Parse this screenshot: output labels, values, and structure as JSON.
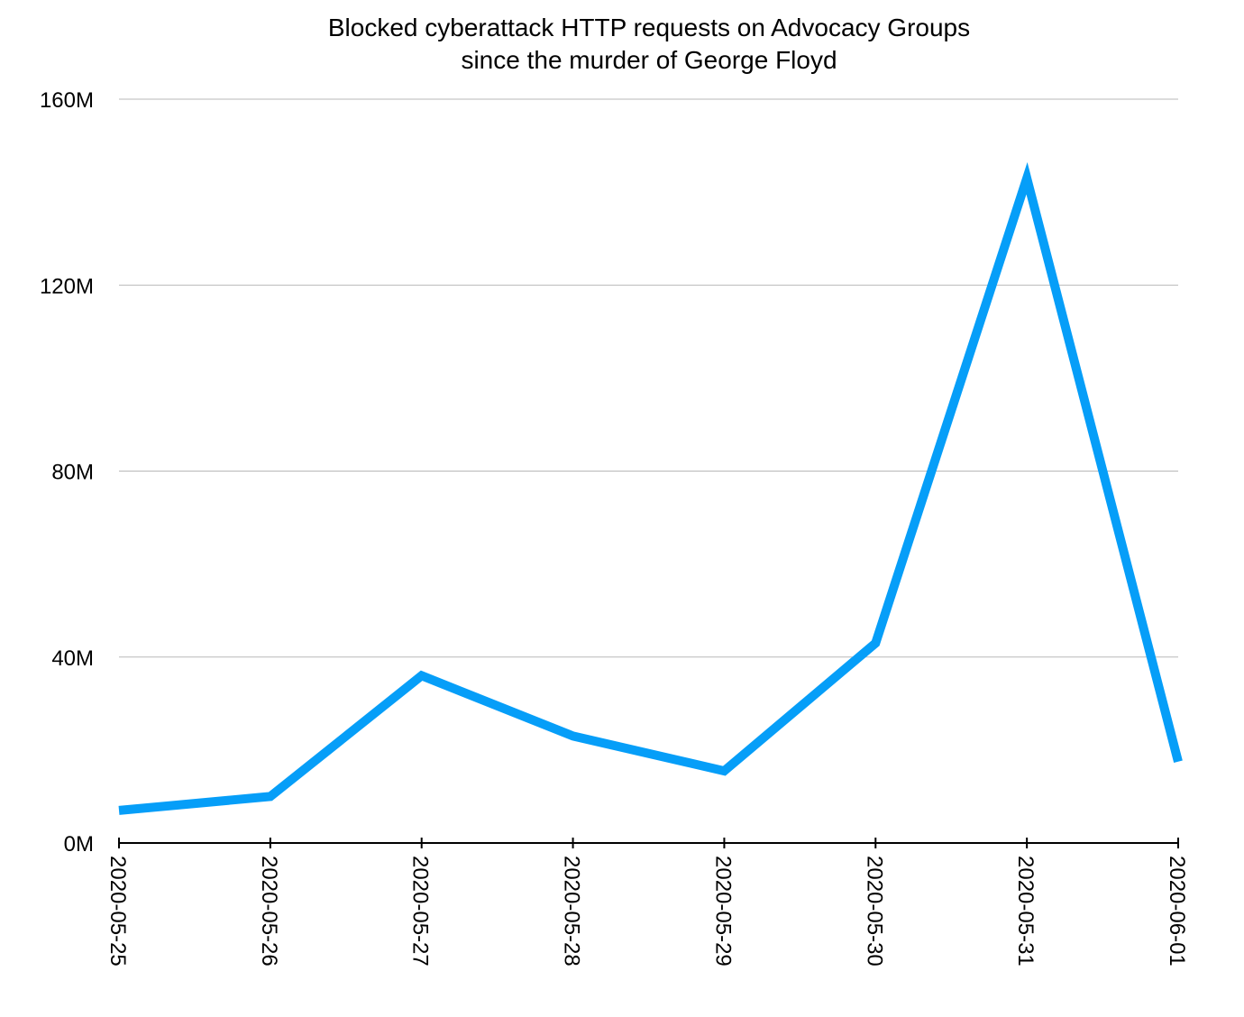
{
  "chart_data": {
    "type": "line",
    "title_lines": [
      "Blocked cyberattack HTTP requests on Advocacy Groups",
      "since the murder of George Floyd"
    ],
    "xlabel": "",
    "ylabel": "",
    "x": [
      "2020-05-25",
      "2020-05-26",
      "2020-05-27",
      "2020-05-28",
      "2020-05-29",
      "2020-05-30",
      "2020-05-31",
      "2020-06-01"
    ],
    "series": [
      {
        "values": [
          7000000,
          10000000,
          36000000,
          23000000,
          15500000,
          43000000,
          143000000,
          17500000
        ],
        "color": "#069ef8"
      }
    ],
    "ylim": [
      0,
      160000000
    ],
    "yticks": [
      0,
      40000000,
      80000000,
      120000000,
      160000000
    ],
    "ytick_labels": [
      "0M",
      "40M",
      "80M",
      "120M",
      "160M"
    ],
    "grid": "horizontal",
    "legend": "none"
  }
}
